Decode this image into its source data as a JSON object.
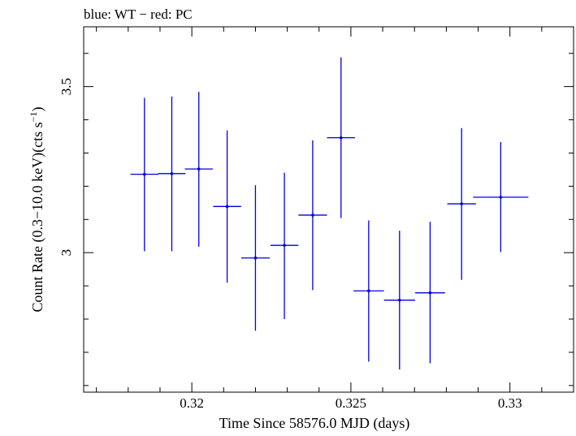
{
  "chart_data": {
    "type": "scatter",
    "title": "blue: WT − red: PC",
    "xlabel": "Time Since 58576.0 MJD (days)",
    "ylabel_main": "Count Rate (0.3−10.0 keV)(cts s",
    "ylabel_sup": "−1",
    "ylabel_close": ")",
    "xlim": [
      0.3166,
      0.332
    ],
    "ylim": [
      2.58,
      3.68
    ],
    "x_ticks": [
      {
        "value": 0.32,
        "label": "0.32"
      },
      {
        "value": 0.325,
        "label": "0.325"
      },
      {
        "value": 0.33,
        "label": "0.33"
      }
    ],
    "x_minor_step": 0.001,
    "y_ticks": [
      {
        "value": 3.0,
        "label": "3"
      },
      {
        "value": 3.5,
        "label": "3.5"
      }
    ],
    "y_minor_step": 0.1,
    "grid": false,
    "series": [
      {
        "color": "#0000dd",
        "points": [
          {
            "x": 0.31851,
            "y": 3.236,
            "xerr": 0.00044,
            "ylo": 3.004,
            "yhi": 3.466
          },
          {
            "x": 0.31937,
            "y": 3.238,
            "xerr": 0.00043,
            "ylo": 3.004,
            "yhi": 3.47
          },
          {
            "x": 0.32022,
            "y": 3.252,
            "xerr": 0.00044,
            "ylo": 3.018,
            "yhi": 3.484
          },
          {
            "x": 0.32111,
            "y": 3.139,
            "xerr": 0.00044,
            "ylo": 2.91,
            "yhi": 3.368
          },
          {
            "x": 0.322,
            "y": 2.984,
            "xerr": 0.00045,
            "ylo": 2.765,
            "yhi": 3.203
          },
          {
            "x": 0.32291,
            "y": 3.022,
            "xerr": 0.00044,
            "ylo": 2.8,
            "yhi": 3.241
          },
          {
            "x": 0.3238,
            "y": 3.113,
            "xerr": 0.00045,
            "ylo": 2.887,
            "yhi": 3.338
          },
          {
            "x": 0.32469,
            "y": 3.346,
            "xerr": 0.00044,
            "ylo": 3.104,
            "yhi": 3.588
          },
          {
            "x": 0.32556,
            "y": 2.885,
            "xerr": 0.00048,
            "ylo": 2.672,
            "yhi": 3.097
          },
          {
            "x": 0.32653,
            "y": 2.857,
            "xerr": 0.00049,
            "ylo": 2.648,
            "yhi": 3.066
          },
          {
            "x": 0.32749,
            "y": 2.879,
            "xerr": 0.00047,
            "ylo": 2.667,
            "yhi": 3.093
          },
          {
            "x": 0.32848,
            "y": 3.147,
            "xerr": 0.00045,
            "ylo": 2.918,
            "yhi": 3.375
          },
          {
            "x": 0.32971,
            "y": 3.167,
            "xerr": 0.00087,
            "ylo": 3.002,
            "yhi": 3.333
          }
        ]
      }
    ]
  }
}
